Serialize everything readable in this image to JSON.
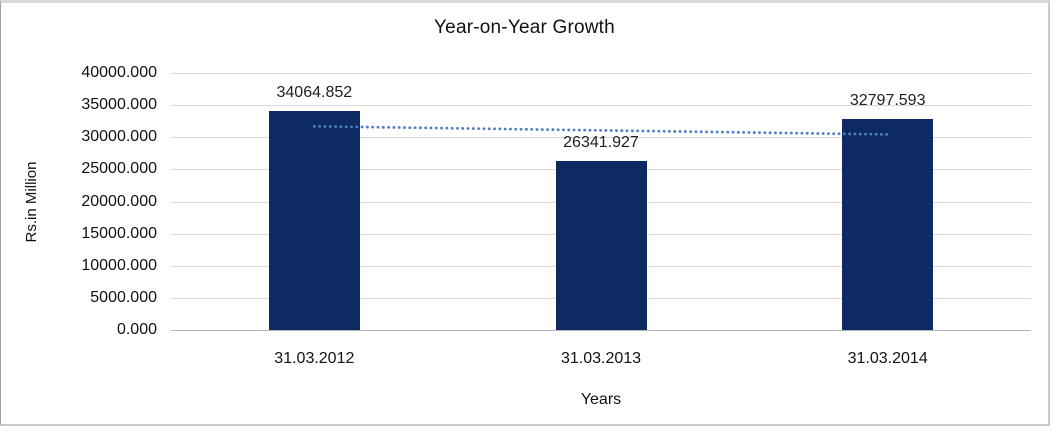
{
  "chart_data": {
    "type": "bar",
    "title": "Year-on-Year Growth",
    "xlabel": "Years",
    "ylabel": "Rs.in Million",
    "categories": [
      "31.03.2012",
      "31.03.2013",
      "31.03.2014"
    ],
    "values": [
      34064.852,
      26341.927,
      32797.593
    ],
    "data_labels": [
      "34064.852",
      "26341.927",
      "32797.593"
    ],
    "ylim": [
      0,
      40000
    ],
    "ytick_step": 5000,
    "ytick_labels": [
      "40000.000",
      "35000.000",
      "30000.000",
      "25000.000",
      "20000.000",
      "15000.000",
      "10000.000",
      "5000.000",
      "0.000"
    ],
    "grid": true,
    "legend": "none",
    "trendline": {
      "type": "linear",
      "style": "dotted"
    },
    "colors": {
      "bar": "#0e2a63",
      "trendline": "#4e7fc1",
      "gridline": "#d9d9d9",
      "axis_line": "#b3b3b3",
      "text": "#111111",
      "frame_border": "#cbcbcb"
    }
  }
}
